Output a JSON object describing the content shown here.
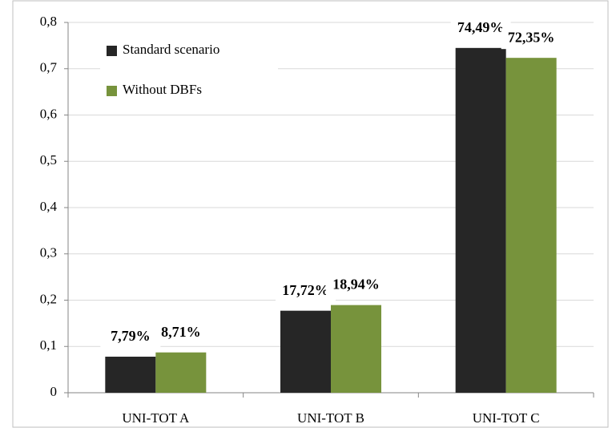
{
  "chart_data": {
    "type": "bar",
    "categories": [
      "UNI-TOT A",
      "UNI-TOT B",
      "UNI-TOT C"
    ],
    "series": [
      {
        "name": "Standard scenario",
        "color": "#262626",
        "values": [
          0.0779,
          0.1772,
          0.7449
        ],
        "value_labels": [
          "7,79%",
          "17,72%",
          "74,49%"
        ]
      },
      {
        "name": "Without DBFs",
        "color": "#77933c",
        "values": [
          0.0871,
          0.1894,
          0.7235
        ],
        "value_labels": [
          "8,71%",
          "18,94%",
          "72,35%"
        ]
      }
    ],
    "ylim": [
      0,
      0.8
    ],
    "yticks": [
      0,
      {
        "value": 0.1,
        "label": "0,1"
      },
      {
        "value": 0.2,
        "label": "0,2"
      },
      {
        "value": 0.3,
        "label": "0,3"
      },
      {
        "value": 0.4,
        "label": "0,4"
      },
      {
        "value": 0.5,
        "label": "0,5"
      },
      {
        "value": 0.6,
        "label": "0,6"
      },
      {
        "value": 0.7,
        "label": "0,7"
      },
      {
        "value": 0.8,
        "label": "0,8"
      }
    ],
    "grid": true,
    "legend": "top-left"
  }
}
